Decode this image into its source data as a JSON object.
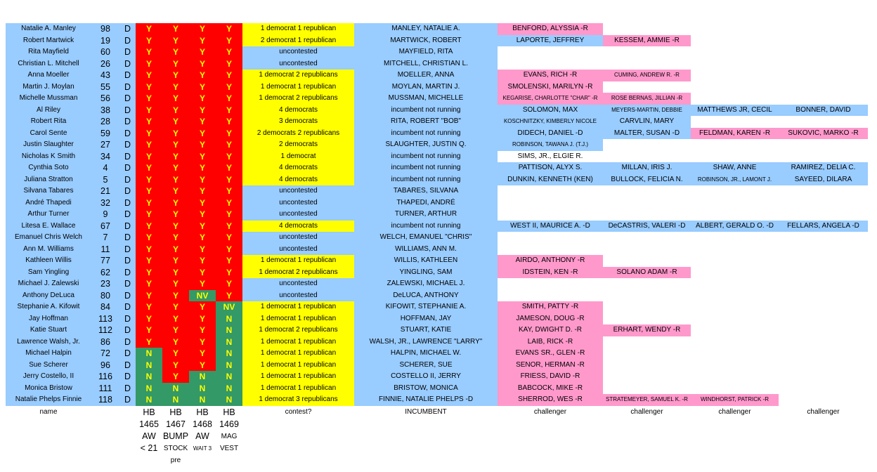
{
  "rows": [
    {
      "name": "Natalie A. Manley",
      "district": "98",
      "party": "D",
      "votes": [
        "Y",
        "Y",
        "Y",
        "Y"
      ],
      "contest": "1 democrat 1 republican",
      "incumbent": "MANLEY, NATALIE A.",
      "challengers": [
        {
          "text": "BENFORD, ALYSSIA -R",
          "color": "pink"
        }
      ]
    },
    {
      "name": "Robert Martwick",
      "district": "19",
      "party": "D",
      "votes": [
        "Y",
        "Y",
        "Y",
        "Y"
      ],
      "contest": "2 democrat 1 republican",
      "incumbent": "MARTWICK, ROBERT",
      "challengers": [
        {
          "text": "LAPORTE, JEFFREY",
          "color": "blue"
        },
        {
          "text": "KESSEM, AMMIE -R",
          "color": "pink"
        }
      ]
    },
    {
      "name": "Rita Mayfield",
      "district": "60",
      "party": "D",
      "votes": [
        "Y",
        "Y",
        "Y",
        "Y"
      ],
      "contest": "uncontested",
      "incumbent": "MAYFIELD, RITA",
      "challengers": []
    },
    {
      "name": "Christian L. Mitchell",
      "district": "26",
      "party": "D",
      "votes": [
        "Y",
        "Y",
        "Y",
        "Y"
      ],
      "contest": "uncontested",
      "incumbent": "MITCHELL, CHRISTIAN L.",
      "challengers": []
    },
    {
      "name": "Anna Moeller",
      "district": "43",
      "party": "D",
      "votes": [
        "Y",
        "Y",
        "Y",
        "Y"
      ],
      "contest": "1 democrat 2 republicans",
      "incumbent": "MOELLER, ANNA",
      "challengers": [
        {
          "text": "EVANS, RICH -R",
          "color": "pink"
        },
        {
          "text": "CUMING, ANDREW R. -R",
          "color": "pink",
          "small": true
        }
      ]
    },
    {
      "name": "Martin J. Moylan",
      "district": "55",
      "party": "D",
      "votes": [
        "Y",
        "Y",
        "Y",
        "Y"
      ],
      "contest": "1 democrat 1 republican",
      "incumbent": "MOYLAN, MARTIN J.",
      "challengers": [
        {
          "text": "SMOLENSKI, MARILYN  -R",
          "color": "pink"
        }
      ]
    },
    {
      "name": "Michelle Mussman",
      "district": "56",
      "party": "D",
      "votes": [
        "Y",
        "Y",
        "Y",
        "Y"
      ],
      "contest": "1 democrat 2 republicans",
      "incumbent": "MUSSMAN, MICHELLE",
      "challengers": [
        {
          "text": "KEGARISE, CHARLOTTE \"CHAR\" -R",
          "color": "pink",
          "small": true
        },
        {
          "text": "ROSE BERNAS, JILLIAN -R",
          "color": "pink",
          "small": true
        }
      ]
    },
    {
      "name": "Al Riley",
      "district": "38",
      "party": "D",
      "votes": [
        "Y",
        "Y",
        "Y",
        "Y"
      ],
      "contest": "4 democrats",
      "incumbent": "incumbent not running",
      "challengers": [
        {
          "text": "SOLOMON, MAX",
          "color": "blue"
        },
        {
          "text": "MEYERS-MARTIN, DEBBIE",
          "color": "blue",
          "small": true
        },
        {
          "text": "MATTHEWS JR, CECIL",
          "color": "blue"
        },
        {
          "text": "BONNER, DAVID",
          "color": "blue"
        }
      ]
    },
    {
      "name": "Robert Rita",
      "district": "28",
      "party": "D",
      "votes": [
        "Y",
        "Y",
        "Y",
        "Y"
      ],
      "contest": "3 democrats",
      "incumbent": "RITA, ROBERT \"BOB\"",
      "challengers": [
        {
          "text": "KOSCHNITZKY, KIMBERLY NICOLE",
          "color": "blue",
          "small": true
        },
        {
          "text": "CARVLIN, MARY",
          "color": "blue"
        }
      ]
    },
    {
      "name": "Carol Sente",
      "district": "59",
      "party": "D",
      "votes": [
        "Y",
        "Y",
        "Y",
        "Y"
      ],
      "contest": "2 democrats  2 republicans",
      "incumbent": "incumbent not running",
      "challengers": [
        {
          "text": "DIDECH, DANIEL -D",
          "color": "blue"
        },
        {
          "text": "MALTER, SUSAN -D",
          "color": "blue"
        },
        {
          "text": "FELDMAN, KAREN -R",
          "color": "pink"
        },
        {
          "text": "SUKOVIC, MARKO -R",
          "color": "pink"
        }
      ]
    },
    {
      "name": "Justin Slaughter",
      "district": "27",
      "party": "D",
      "votes": [
        "Y",
        "Y",
        "Y",
        "Y"
      ],
      "contest": "2 democrats",
      "incumbent": "SLAUGHTER, JUSTIN Q.",
      "challengers": [
        {
          "text": "ROBINSON, TAWANA J. (T.J.)",
          "color": "blue",
          "small": true
        }
      ]
    },
    {
      "name": "Nicholas K Smith",
      "district": "34",
      "party": "D",
      "votes": [
        "Y",
        "Y",
        "Y",
        "Y"
      ],
      "contest": "1 democrat",
      "incumbent": "incumbent not running",
      "challengers": [
        {
          "text": "SIMS, JR., ELGIE R.",
          "color": "white"
        }
      ]
    },
    {
      "name": "Cynthia Soto",
      "district": "4",
      "party": "D",
      "votes": [
        "Y",
        "Y",
        "Y",
        "Y"
      ],
      "contest": "4 democrats",
      "incumbent": "incumbent not running",
      "challengers": [
        {
          "text": "PATTISON, ALYX S.",
          "color": "blue"
        },
        {
          "text": "MILLAN, IRIS J.",
          "color": "blue"
        },
        {
          "text": "SHAW, ANNE",
          "color": "blue"
        },
        {
          "text": "RAMIREZ, DELIA C.",
          "color": "blue"
        }
      ]
    },
    {
      "name": "Juliana Stratton",
      "district": "5",
      "party": "D",
      "votes": [
        "Y",
        "Y",
        "Y",
        "Y"
      ],
      "contest": "4 democrats",
      "incumbent": "incumbent not running",
      "challengers": [
        {
          "text": "DUNKIN, KENNETH (KEN)",
          "color": "blue"
        },
        {
          "text": "BULLOCK, FELICIA N.",
          "color": "blue"
        },
        {
          "text": "ROBINSON, JR., LAMONT J.",
          "color": "blue",
          "small": true
        },
        {
          "text": "SAYEED, DILARA",
          "color": "blue"
        }
      ]
    },
    {
      "name": "Silvana Tabares",
      "district": "21",
      "party": "D",
      "votes": [
        "Y",
        "Y",
        "Y",
        "Y"
      ],
      "contest": "uncontested",
      "incumbent": "TABARES, SILVANA",
      "challengers": []
    },
    {
      "name": "André Thapedi",
      "district": "32",
      "party": "D",
      "votes": [
        "Y",
        "Y",
        "Y",
        "Y"
      ],
      "contest": "uncontested",
      "incumbent": "THAPEDI, ANDRÉ",
      "challengers": []
    },
    {
      "name": "Arthur Turner",
      "district": "9",
      "party": "D",
      "votes": [
        "Y",
        "Y",
        "Y",
        "Y"
      ],
      "contest": "uncontested",
      "incumbent": "TURNER, ARTHUR",
      "challengers": []
    },
    {
      "name": "Litesa E. Wallace",
      "district": "67",
      "party": "D",
      "votes": [
        "Y",
        "Y",
        "Y",
        "Y"
      ],
      "contest": "4 democrats",
      "incumbent": "incumbent not running",
      "challengers": [
        {
          "text": "WEST II, MAURICE A. -D",
          "color": "blue"
        },
        {
          "text": "DeCASTRIS, VALERI -D",
          "color": "blue"
        },
        {
          "text": "ALBERT, GERALD O. -D",
          "color": "blue"
        },
        {
          "text": "FELLARS, ANGELA -D",
          "color": "blue"
        }
      ]
    },
    {
      "name": "Emanuel Chris Welch",
      "district": "7",
      "party": "D",
      "votes": [
        "Y",
        "Y",
        "Y",
        "Y"
      ],
      "contest": "uncontested",
      "incumbent": "WELCH, EMANUEL \"CHRIS\"",
      "challengers": []
    },
    {
      "name": "Ann M. Williams",
      "district": "11",
      "party": "D",
      "votes": [
        "Y",
        "Y",
        "Y",
        "Y"
      ],
      "contest": "uncontested",
      "incumbent": "WILLIAMS, ANN M.",
      "challengers": []
    },
    {
      "name": "Kathleen Willis",
      "district": "77",
      "party": "D",
      "votes": [
        "Y",
        "Y",
        "Y",
        "Y"
      ],
      "contest": "1 democrat 1 republican",
      "incumbent": "WILLIS, KATHLEEN",
      "challengers": [
        {
          "text": "AIRDO, ANTHONY -R",
          "color": "pink"
        }
      ]
    },
    {
      "name": "Sam Yingling",
      "district": "62",
      "party": "D",
      "votes": [
        "Y",
        "Y",
        "Y",
        "Y"
      ],
      "contest": "1 democrat 2 republicans",
      "incumbent": "YINGLING, SAM",
      "challengers": [
        {
          "text": "IDSTEIN, KEN -R",
          "color": "pink"
        },
        {
          "text": "SOLANO ADAM  -R",
          "color": "pink"
        }
      ]
    },
    {
      "name": "Michael J. Zalewski",
      "district": "23",
      "party": "D",
      "votes": [
        "Y",
        "Y",
        "Y",
        "Y"
      ],
      "contest": "uncontested",
      "incumbent": "ZALEWSKI, MICHAEL J.",
      "challengers": []
    },
    {
      "name": "Anthony DeLuca",
      "district": "80",
      "party": "D",
      "votes": [
        "Y",
        "Y",
        "NV",
        "Y"
      ],
      "contest": "uncontested",
      "incumbent": "DeLUCA, ANTHONY",
      "challengers": []
    },
    {
      "name": "Stephanie A. Kifowit",
      "district": "84",
      "party": "D",
      "votes": [
        "Y",
        "Y",
        "Y",
        "NV"
      ],
      "contest": "1 democrat 1 republican",
      "incumbent": "KIFOWIT, STEPHANIE A.",
      "challengers": [
        {
          "text": "SMITH, PATTY -R",
          "color": "pink"
        }
      ]
    },
    {
      "name": "Jay Hoffman",
      "district": "113",
      "party": "D",
      "votes": [
        "Y",
        "Y",
        "Y",
        "N"
      ],
      "contest": "1 democrat 1 republican",
      "incumbent": "HOFFMAN, JAY",
      "challengers": [
        {
          "text": "JAMESON, DOUG -R",
          "color": "pink"
        }
      ]
    },
    {
      "name": "Katie Stuart",
      "district": "112",
      "party": "D",
      "votes": [
        "Y",
        "Y",
        "Y",
        "N"
      ],
      "contest": "1 democrat 2 republicans",
      "incumbent": "STUART, KATIE",
      "challengers": [
        {
          "text": "KAY, DWIGHT D. -R",
          "color": "pink"
        },
        {
          "text": "ERHART, WENDY -R",
          "color": "pink"
        }
      ]
    },
    {
      "name": "Lawrence Walsh, Jr.",
      "district": "86",
      "party": "D",
      "votes": [
        "Y",
        "Y",
        "Y",
        "N"
      ],
      "contest": "1 democrat 1 republican",
      "incumbent": "WALSH, JR., LAWRENCE \"LARRY\"",
      "challengers": [
        {
          "text": "LAIB, RICK -R",
          "color": "pink"
        }
      ]
    },
    {
      "name": "Michael Halpin",
      "district": "72",
      "party": "D",
      "votes": [
        "N",
        "Y",
        "Y",
        "N"
      ],
      "contest": "1 democrat 1 republican",
      "incumbent": "HALPIN, MICHAEL W.",
      "challengers": [
        {
          "text": "EVANS SR., GLEN -R",
          "color": "pink"
        }
      ]
    },
    {
      "name": "Sue Scherer",
      "district": "96",
      "party": "D",
      "votes": [
        "N",
        "Y",
        "Y",
        "N"
      ],
      "contest": "1 democrat 1 republican",
      "incumbent": "SCHERER, SUE",
      "challengers": [
        {
          "text": "SENOR, HERMAN -R",
          "color": "pink"
        }
      ]
    },
    {
      "name": "Jerry Costello, II",
      "district": "116",
      "party": "D",
      "votes": [
        "N",
        "Y",
        "N",
        "N"
      ],
      "contest": "1 democrat 1 republican",
      "incumbent": "COSTELLO II, JERRY",
      "challengers": [
        {
          "text": "FRIESS, DAVID -R",
          "color": "pink"
        }
      ]
    },
    {
      "name": "Monica Bristow",
      "district": "111",
      "party": "D",
      "votes": [
        "N",
        "N",
        "N",
        "N"
      ],
      "contest": "1 democrat 1 republican",
      "incumbent": "BRISTOW, MONICA",
      "challengers": [
        {
          "text": "BABCOCK, MIKE -R",
          "color": "pink"
        }
      ]
    },
    {
      "name": "Natalie Phelps Finnie",
      "district": "118",
      "party": "D",
      "votes": [
        "N",
        "N",
        "N",
        "N"
      ],
      "contest": "1 democrat 3 republicans",
      "incumbent": "FINNIE, NATALIE PHELPS -D",
      "challengers": [
        {
          "text": "SHERROD, WES -R",
          "color": "pink"
        },
        {
          "text": "STRATEMEYER, SAMUEL K. -R",
          "color": "pink",
          "small": true
        },
        {
          "text": "WINDHORST, PATRICK -R",
          "color": "pink",
          "small": true
        }
      ]
    }
  ],
  "footer": {
    "name": "name",
    "contest": "contest?",
    "incumbent": "INCUMBENT",
    "challengers": [
      "challenger",
      "challenger",
      "challenger",
      "challenger"
    ],
    "bills": [
      {
        "l1": "HB",
        "l2": "1465",
        "l3": "AW",
        "l4": "< 21",
        "l5": ""
      },
      {
        "l1": "HB",
        "l2": "1467",
        "l3": "BUMP",
        "l4": "STOCK",
        "l5": "pre"
      },
      {
        "l1": "HB",
        "l2": "1468",
        "l3": "AW",
        "l4": "WAIT 3",
        "l5": ""
      },
      {
        "l1": "HB",
        "l2": "1469",
        "l3": "MAG",
        "l4": "VEST",
        "l5": ""
      }
    ]
  },
  "colors": {
    "blue": "#99ccff",
    "yellow": "#ffff00",
    "pink": "#ff99cc",
    "vote_yes_bg": "#ff0000",
    "vote_no_bg": "#339966",
    "vote_text": "#ffff00"
  }
}
